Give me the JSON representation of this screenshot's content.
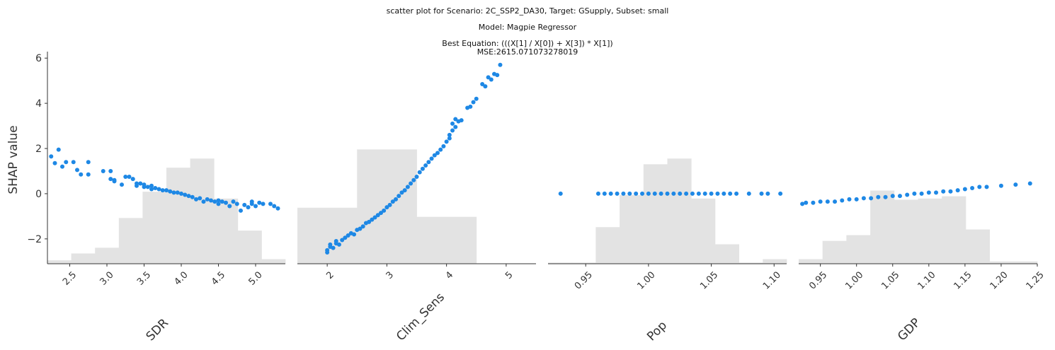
{
  "figure": {
    "title_lines": [
      "scatter plot for Scenario: 2C_SSP2_DA30, Target: GSupply, Subset: small",
      "Model: Magpie Regressor",
      "Best Equation: (((X[1] / X[0]) + X[3]) * X[1])",
      "MSE:2615.071073278019"
    ],
    "ylabel": "SHAP value",
    "point_color": "#1E88E5",
    "hist_color": "#e3e3e3"
  },
  "chart_data": [
    {
      "type": "scatter",
      "xlabel": "SDR",
      "ylabel": "SHAP value",
      "xlim": [
        2.2,
        5.4
      ],
      "ylim": [
        -3.1,
        6.1
      ],
      "xticks": [
        "2.5",
        "3.0",
        "3.5",
        "4.0",
        "4.5",
        "5.0"
      ],
      "yticks": [
        "6",
        "4",
        "2",
        "0",
        "−2"
      ],
      "points": [
        [
          2.25,
          1.65
        ],
        [
          2.3,
          1.35
        ],
        [
          2.35,
          1.95
        ],
        [
          2.4,
          1.2
        ],
        [
          2.45,
          1.4
        ],
        [
          2.55,
          1.4
        ],
        [
          2.6,
          1.05
        ],
        [
          2.65,
          0.85
        ],
        [
          2.75,
          1.4
        ],
        [
          2.75,
          0.85
        ],
        [
          2.95,
          1.0
        ],
        [
          3.05,
          1.0
        ],
        [
          3.05,
          0.65
        ],
        [
          3.1,
          0.6
        ],
        [
          3.1,
          0.55
        ],
        [
          3.2,
          0.4
        ],
        [
          3.25,
          0.75
        ],
        [
          3.3,
          0.75
        ],
        [
          3.35,
          0.65
        ],
        [
          3.4,
          0.45
        ],
        [
          3.4,
          0.35
        ],
        [
          3.45,
          0.45
        ],
        [
          3.5,
          0.4
        ],
        [
          3.5,
          0.3
        ],
        [
          3.55,
          0.3
        ],
        [
          3.6,
          0.35
        ],
        [
          3.6,
          0.2
        ],
        [
          3.65,
          0.25
        ],
        [
          3.7,
          0.2
        ],
        [
          3.75,
          0.15
        ],
        [
          3.8,
          0.15
        ],
        [
          3.85,
          0.1
        ],
        [
          3.9,
          0.05
        ],
        [
          3.95,
          0.05
        ],
        [
          4.0,
          0.0
        ],
        [
          4.05,
          -0.05
        ],
        [
          4.1,
          -0.1
        ],
        [
          4.15,
          -0.15
        ],
        [
          4.2,
          -0.25
        ],
        [
          4.25,
          -0.2
        ],
        [
          4.3,
          -0.35
        ],
        [
          4.35,
          -0.25
        ],
        [
          4.4,
          -0.3
        ],
        [
          4.45,
          -0.35
        ],
        [
          4.5,
          -0.3
        ],
        [
          4.5,
          -0.45
        ],
        [
          4.55,
          -0.35
        ],
        [
          4.6,
          -0.4
        ],
        [
          4.65,
          -0.55
        ],
        [
          4.7,
          -0.35
        ],
        [
          4.75,
          -0.45
        ],
        [
          4.8,
          -0.75
        ],
        [
          4.85,
          -0.5
        ],
        [
          4.9,
          -0.6
        ],
        [
          4.95,
          -0.45
        ],
        [
          4.95,
          -0.35
        ],
        [
          5.0,
          -0.55
        ],
        [
          5.05,
          -0.4
        ],
        [
          5.1,
          -0.45
        ],
        [
          5.2,
          -0.45
        ],
        [
          5.25,
          -0.55
        ],
        [
          5.3,
          -0.65
        ]
      ],
      "histogram": {
        "edges": [
          2.2,
          2.52,
          2.84,
          3.16,
          3.48,
          3.8,
          4.12,
          4.44,
          4.76,
          5.08,
          5.4
        ],
        "relative_heights": [
          0.03,
          0.09,
          0.14,
          0.4,
          0.63,
          0.84,
          0.92,
          0.57,
          0.29,
          0.04
        ]
      }
    },
    {
      "type": "scatter",
      "xlabel": "Clim_Sens",
      "ylabel": "",
      "xlim": [
        1.5,
        5.5
      ],
      "ylim": [
        -3.1,
        6.1
      ],
      "xticks": [
        "2",
        "3",
        "4",
        "5"
      ],
      "yticks": [],
      "points": [
        [
          2.0,
          -2.6
        ],
        [
          2.0,
          -2.5
        ],
        [
          2.05,
          -2.35
        ],
        [
          2.05,
          -2.25
        ],
        [
          2.1,
          -2.4
        ],
        [
          2.15,
          -2.2
        ],
        [
          2.15,
          -2.1
        ],
        [
          2.2,
          -2.25
        ],
        [
          2.25,
          -2.05
        ],
        [
          2.3,
          -1.95
        ],
        [
          2.35,
          -1.85
        ],
        [
          2.4,
          -1.75
        ],
        [
          2.45,
          -1.8
        ],
        [
          2.5,
          -1.6
        ],
        [
          2.55,
          -1.55
        ],
        [
          2.6,
          -1.45
        ],
        [
          2.65,
          -1.3
        ],
        [
          2.7,
          -1.25
        ],
        [
          2.75,
          -1.15
        ],
        [
          2.8,
          -1.05
        ],
        [
          2.85,
          -0.95
        ],
        [
          2.9,
          -0.85
        ],
        [
          2.95,
          -0.75
        ],
        [
          3.0,
          -0.6
        ],
        [
          3.05,
          -0.5
        ],
        [
          3.1,
          -0.35
        ],
        [
          3.15,
          -0.25
        ],
        [
          3.2,
          -0.1
        ],
        [
          3.25,
          0.05
        ],
        [
          3.3,
          0.15
        ],
        [
          3.35,
          0.3
        ],
        [
          3.4,
          0.45
        ],
        [
          3.45,
          0.6
        ],
        [
          3.5,
          0.75
        ],
        [
          3.55,
          0.95
        ],
        [
          3.6,
          1.1
        ],
        [
          3.65,
          1.25
        ],
        [
          3.7,
          1.4
        ],
        [
          3.75,
          1.55
        ],
        [
          3.8,
          1.7
        ],
        [
          3.85,
          1.8
        ],
        [
          3.9,
          1.95
        ],
        [
          3.95,
          2.1
        ],
        [
          4.0,
          2.3
        ],
        [
          4.05,
          2.45
        ],
        [
          4.05,
          2.6
        ],
        [
          4.1,
          2.8
        ],
        [
          4.1,
          3.1
        ],
        [
          4.15,
          2.95
        ],
        [
          4.15,
          3.3
        ],
        [
          4.2,
          3.2
        ],
        [
          4.25,
          3.25
        ],
        [
          4.35,
          3.8
        ],
        [
          4.4,
          3.85
        ],
        [
          4.45,
          4.05
        ],
        [
          4.5,
          4.2
        ],
        [
          4.6,
          4.85
        ],
        [
          4.65,
          4.75
        ],
        [
          4.7,
          5.15
        ],
        [
          4.75,
          5.05
        ],
        [
          4.8,
          5.3
        ],
        [
          4.85,
          5.25
        ],
        [
          4.9,
          5.7
        ]
      ],
      "histogram": {
        "edges": [
          1.5,
          2.5,
          3.5,
          4.5,
          5.5
        ],
        "relative_heights": [
          0.49,
          1.0,
          0.41,
          0.0
        ]
      }
    },
    {
      "type": "scatter",
      "xlabel": "Pop",
      "ylabel": "",
      "xlim": [
        0.92,
        1.11
      ],
      "ylim": [
        -3.1,
        6.1
      ],
      "xticks": [
        "0.95",
        "1.00",
        "1.05",
        "1.10"
      ],
      "yticks": [],
      "points": [
        [
          0.93,
          0.0
        ],
        [
          0.96,
          0.0
        ],
        [
          0.965,
          0.0
        ],
        [
          0.97,
          0.0
        ],
        [
          0.975,
          0.0
        ],
        [
          0.98,
          0.0
        ],
        [
          0.985,
          0.0
        ],
        [
          0.99,
          0.0
        ],
        [
          0.995,
          0.0
        ],
        [
          1.0,
          0.0
        ],
        [
          1.005,
          0.0
        ],
        [
          1.01,
          0.0
        ],
        [
          1.015,
          0.0
        ],
        [
          1.02,
          0.0
        ],
        [
          1.025,
          0.0
        ],
        [
          1.03,
          0.0
        ],
        [
          1.035,
          0.0
        ],
        [
          1.04,
          0.0
        ],
        [
          1.045,
          0.0
        ],
        [
          1.05,
          0.0
        ],
        [
          1.055,
          0.0
        ],
        [
          1.06,
          0.0
        ],
        [
          1.065,
          0.0
        ],
        [
          1.07,
          0.0
        ],
        [
          1.08,
          0.0
        ],
        [
          1.09,
          0.0
        ],
        [
          1.095,
          0.0
        ],
        [
          1.105,
          0.0
        ]
      ],
      "histogram": {
        "edges": [
          0.92,
          0.939,
          0.958,
          0.977,
          0.996,
          1.015,
          1.034,
          1.053,
          1.072,
          1.091,
          1.11
        ],
        "relative_heights": [
          0.01,
          0.01,
          0.32,
          0.6,
          0.87,
          0.92,
          0.57,
          0.17,
          0.01,
          0.04
        ]
      }
    },
    {
      "type": "scatter",
      "xlabel": "GDP",
      "ylabel": "",
      "xlim": [
        0.92,
        1.25
      ],
      "ylim": [
        -3.1,
        6.1
      ],
      "xticks": [
        "0.95",
        "1.00",
        "1.05",
        "1.10",
        "1.15",
        "1.20",
        "1.25"
      ],
      "yticks": [],
      "points": [
        [
          0.925,
          -0.45
        ],
        [
          0.93,
          -0.4
        ],
        [
          0.94,
          -0.4
        ],
        [
          0.95,
          -0.35
        ],
        [
          0.96,
          -0.35
        ],
        [
          0.97,
          -0.35
        ],
        [
          0.98,
          -0.3
        ],
        [
          0.99,
          -0.25
        ],
        [
          1.0,
          -0.25
        ],
        [
          1.01,
          -0.2
        ],
        [
          1.02,
          -0.2
        ],
        [
          1.03,
          -0.15
        ],
        [
          1.04,
          -0.15
        ],
        [
          1.05,
          -0.1
        ],
        [
          1.06,
          -0.1
        ],
        [
          1.07,
          -0.05
        ],
        [
          1.08,
          0.0
        ],
        [
          1.09,
          0.0
        ],
        [
          1.1,
          0.05
        ],
        [
          1.11,
          0.05
        ],
        [
          1.12,
          0.1
        ],
        [
          1.13,
          0.1
        ],
        [
          1.14,
          0.15
        ],
        [
          1.15,
          0.2
        ],
        [
          1.16,
          0.25
        ],
        [
          1.17,
          0.3
        ],
        [
          1.18,
          0.3
        ],
        [
          1.2,
          0.35
        ],
        [
          1.22,
          0.4
        ],
        [
          1.24,
          0.45
        ]
      ],
      "histogram": {
        "edges": [
          0.92,
          0.953,
          0.986,
          1.019,
          1.052,
          1.085,
          1.118,
          1.151,
          1.184,
          1.217,
          1.25
        ],
        "relative_heights": [
          0.04,
          0.2,
          0.25,
          0.64,
          0.56,
          0.57,
          0.59,
          0.3,
          0.02,
          0.02
        ]
      }
    }
  ]
}
